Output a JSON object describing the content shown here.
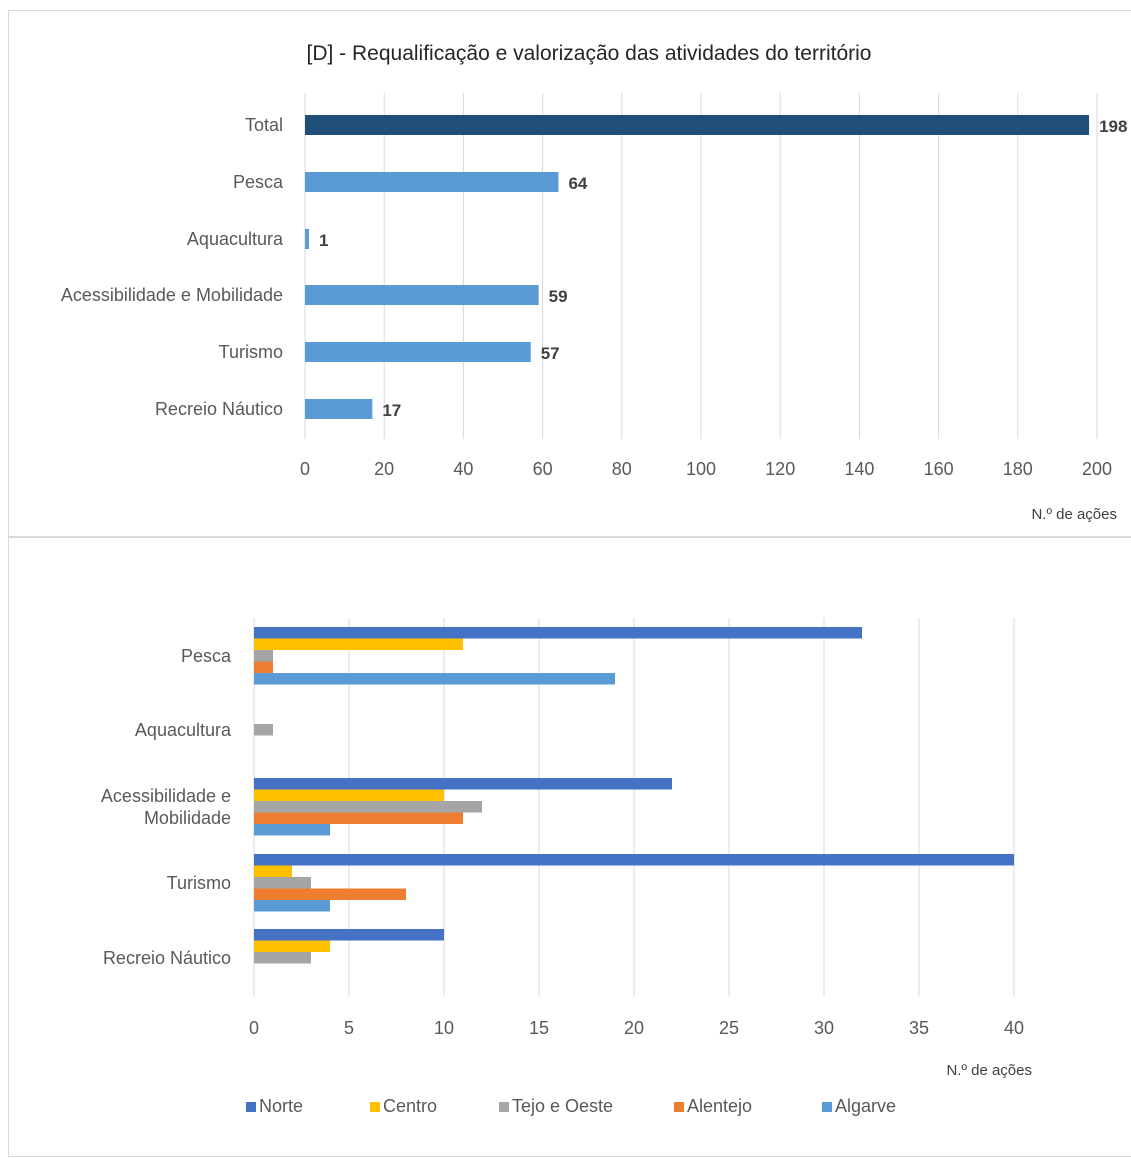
{
  "chart_data": [
    {
      "type": "bar",
      "orientation": "horizontal",
      "title": "[D] - Requalificação e valorização das atividades do território",
      "xlabel": "N.º de ações",
      "categories": [
        "Total",
        "Pesca",
        "Aquacultura",
        "Acessibilidade e Mobilidade",
        "Turismo",
        "Recreio Náutico"
      ],
      "values": [
        198,
        64,
        1,
        59,
        57,
        17
      ],
      "data_labels": [
        "198",
        "64",
        "1",
        "59",
        "57",
        "17"
      ],
      "xlim": [
        0,
        200
      ],
      "xticks": [
        "0",
        "20",
        "40",
        "60",
        "80",
        "100",
        "120",
        "140",
        "160",
        "180",
        "200"
      ],
      "grid": true,
      "colors": {
        "total": "#1F4E79",
        "bars": "#5B9BD5"
      }
    },
    {
      "type": "bar",
      "orientation": "horizontal",
      "xlabel": "N.º de ações",
      "categories": [
        "Pesca",
        "Aquacultura",
        "Acessibilidade e Mobilidade",
        "Turismo",
        "Recreio Náutico"
      ],
      "category_lines": [
        [
          "Pesca"
        ],
        [
          "Aquacultura"
        ],
        [
          "Acessibilidade e",
          "Mobilidade"
        ],
        [
          "Turismo"
        ],
        [
          "Recreio Náutico"
        ]
      ],
      "series": [
        {
          "name": "Norte",
          "color": "#4472C4",
          "values": [
            32,
            0,
            22,
            40,
            10
          ]
        },
        {
          "name": "Centro",
          "color": "#FFC000",
          "values": [
            11,
            0,
            10,
            2,
            4
          ]
        },
        {
          "name": "Tejo e Oeste",
          "color": "#A5A5A5",
          "values": [
            1,
            1,
            12,
            3,
            3
          ]
        },
        {
          "name": "Alentejo",
          "color": "#ED7D31",
          "values": [
            1,
            0,
            11,
            8,
            0
          ]
        },
        {
          "name": "Algarve",
          "color": "#5B9BD5",
          "values": [
            19,
            0,
            4,
            4,
            0
          ]
        }
      ],
      "xlim": [
        0,
        40
      ],
      "xticks": [
        "0",
        "5",
        "10",
        "15",
        "20",
        "25",
        "30",
        "35",
        "40"
      ],
      "grid": true,
      "legend": "bottom"
    }
  ]
}
